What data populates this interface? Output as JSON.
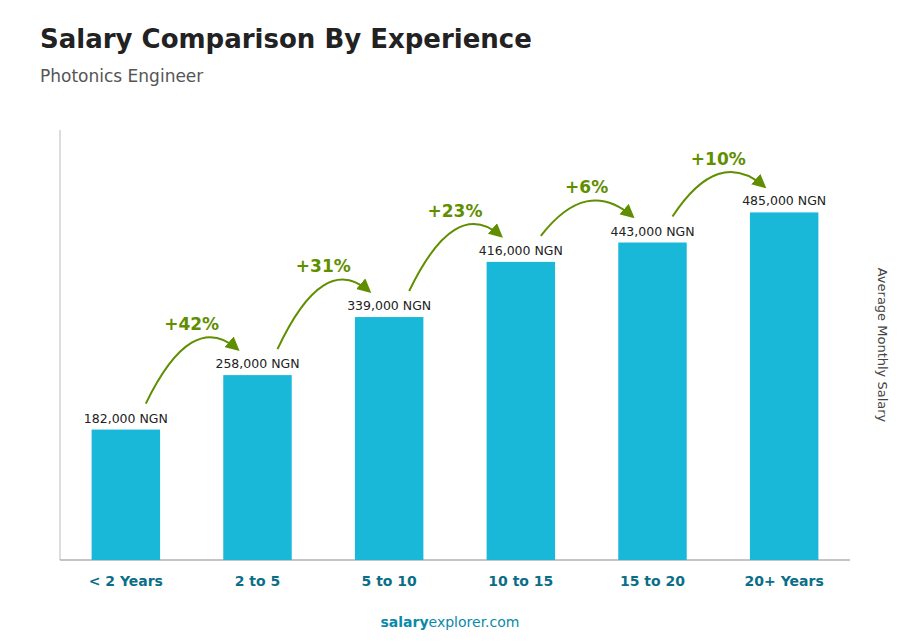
{
  "chart_data": {
    "type": "bar",
    "title": "Salary Comparison By Experience",
    "subtitle": "Photonics Engineer",
    "ylabel": "Average Monthly Salary",
    "categories": [
      "< 2 Years",
      "2 to 5",
      "5 to 10",
      "10 to 15",
      "15 to 20",
      "20+ Years"
    ],
    "values": [
      182000,
      258000,
      339000,
      416000,
      443000,
      485000
    ],
    "value_labels": [
      "182,000 NGN",
      "258,000 NGN",
      "339,000 NGN",
      "416,000 NGN",
      "443,000 NGN",
      "485,000 NGN"
    ],
    "annotations": [
      "+42%",
      "+31%",
      "+23%",
      "+6%",
      "+10%"
    ],
    "footer": [
      "salary",
      "explorer.com"
    ],
    "color": "#1ab8d8",
    "ylim": [
      0,
      600000
    ],
    "data_labels": true,
    "tick_labels": "x",
    "grid": false
  }
}
